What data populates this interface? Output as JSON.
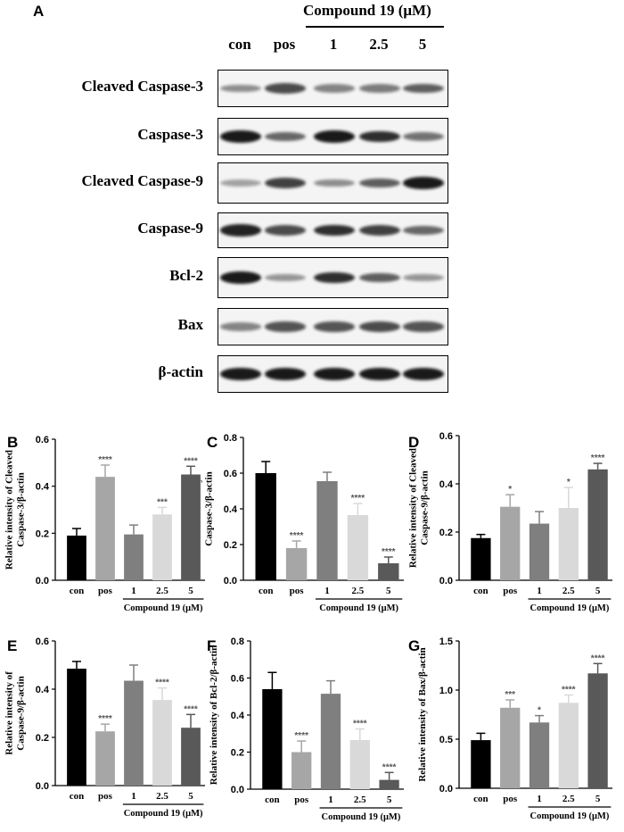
{
  "panel_a": {
    "letter": "A",
    "treatment_label": "Compound  19 (μM)",
    "lanes": [
      "con",
      "pos",
      "1",
      "2.5",
      "5"
    ],
    "rows": [
      {
        "label": "Cleaved Caspase-3",
        "intensities": [
          0.35,
          0.7,
          0.4,
          0.45,
          0.6
        ]
      },
      {
        "label": "Caspase-3",
        "intensities": [
          0.95,
          0.55,
          0.95,
          0.85,
          0.5
        ]
      },
      {
        "label": "Cleaved Caspase-9",
        "intensities": [
          0.25,
          0.75,
          0.35,
          0.6,
          0.95
        ]
      },
      {
        "label": "Caspase-9",
        "intensities": [
          0.9,
          0.7,
          0.85,
          0.75,
          0.55
        ]
      },
      {
        "label": "Bcl-2",
        "intensities": [
          0.95,
          0.3,
          0.85,
          0.6,
          0.3
        ]
      },
      {
        "label": "Bax",
        "intensities": [
          0.4,
          0.65,
          0.65,
          0.7,
          0.65
        ]
      },
      {
        "label": "β-actin",
        "intensities": [
          0.95,
          0.95,
          0.95,
          0.95,
          0.95
        ]
      }
    ]
  },
  "chart_data": [
    {
      "letter": "B",
      "type": "bar",
      "categories": [
        "con",
        "pos",
        "1",
        "2.5",
        "5"
      ],
      "values": [
        0.19,
        0.44,
        0.195,
        0.28,
        0.45
      ],
      "errors": [
        0.03,
        0.05,
        0.04,
        0.03,
        0.035
      ],
      "significance": [
        "",
        "****",
        "",
        "***",
        "****"
      ],
      "ylabel": [
        "Relative intensity of Cleaved",
        "Caspase-3/β-actin"
      ],
      "ylim": [
        0,
        0.6
      ],
      "ticks": [
        0.0,
        0.2,
        0.4,
        0.6
      ],
      "tick_labels": [
        "0.0",
        "0.2",
        "0.4",
        "0.6"
      ],
      "group_label": "Compound 19 (μM)"
    },
    {
      "letter": "C",
      "type": "bar",
      "categories": [
        "con",
        "pos",
        "1",
        "2.5",
        "5"
      ],
      "values": [
        0.6,
        0.18,
        0.555,
        0.365,
        0.095
      ],
      "errors": [
        0.065,
        0.04,
        0.05,
        0.065,
        0.035
      ],
      "significance": [
        "",
        "****",
        "",
        "****",
        "****"
      ],
      "ylabel": [
        "Relative intensity of",
        "Caspase-3/β-actin"
      ],
      "ylim": [
        0,
        0.8
      ],
      "ticks": [
        0.0,
        0.2,
        0.4,
        0.6,
        0.8
      ],
      "tick_labels": [
        "0.0",
        "0.2",
        "0.4",
        "0.6",
        "0.8"
      ],
      "group_label": "Compound 19 (μM)"
    },
    {
      "letter": "D",
      "type": "bar",
      "categories": [
        "con",
        "pos",
        "1",
        "2.5",
        "5"
      ],
      "values": [
        0.175,
        0.305,
        0.235,
        0.3,
        0.46
      ],
      "errors": [
        0.015,
        0.05,
        0.05,
        0.085,
        0.025
      ],
      "significance": [
        "",
        "*",
        "",
        "*",
        "****"
      ],
      "ylabel": [
        "Relative intensity of Cleaved",
        "Caspase-9/β-actin"
      ],
      "ylim": [
        0,
        0.6
      ],
      "ticks": [
        0.0,
        0.2,
        0.4,
        0.6
      ],
      "tick_labels": [
        "0.0",
        "0.2",
        "0.4",
        "0.6"
      ],
      "group_label": "Compound 19 (μM)"
    },
    {
      "letter": "E",
      "type": "bar",
      "categories": [
        "con",
        "pos",
        "1",
        "2.5",
        "5"
      ],
      "values": [
        0.485,
        0.225,
        0.435,
        0.355,
        0.24
      ],
      "errors": [
        0.03,
        0.03,
        0.065,
        0.05,
        0.055
      ],
      "significance": [
        "",
        "****",
        "",
        "****",
        "****"
      ],
      "ylabel": [
        "Relative intensity of",
        "Caspase-9/β-actin"
      ],
      "ylim": [
        0,
        0.6
      ],
      "ticks": [
        0.0,
        0.2,
        0.4,
        0.6
      ],
      "tick_labels": [
        "0.0",
        "0.2",
        "0.4",
        "0.6"
      ],
      "group_label": "Compound 19 (μM)"
    },
    {
      "letter": "F",
      "type": "bar",
      "categories": [
        "con",
        "pos",
        "1",
        "2.5",
        "5"
      ],
      "values": [
        0.54,
        0.2,
        0.515,
        0.265,
        0.05
      ],
      "errors": [
        0.09,
        0.06,
        0.07,
        0.06,
        0.04
      ],
      "significance": [
        "",
        "****",
        "",
        "****",
        "****"
      ],
      "ylabel": [
        "Relative intensity of Bcl-2/β-actin"
      ],
      "ylim": [
        0,
        0.8
      ],
      "ticks": [
        0.0,
        0.2,
        0.4,
        0.6,
        0.8
      ],
      "tick_labels": [
        "0.0",
        "0.2",
        "0.4",
        "0.6",
        "0.8"
      ],
      "group_label": "Compound 19 (μM)"
    },
    {
      "letter": "G",
      "type": "bar",
      "categories": [
        "con",
        "pos",
        "1",
        "2.5",
        "5"
      ],
      "values": [
        0.49,
        0.82,
        0.67,
        0.87,
        1.17
      ],
      "errors": [
        0.07,
        0.08,
        0.07,
        0.08,
        0.1
      ],
      "significance": [
        "",
        "***",
        "*",
        "****",
        "****"
      ],
      "ylabel": [
        "Relative intensity of Bax/β-actin"
      ],
      "ylim": [
        0,
        1.5
      ],
      "ticks": [
        0.0,
        0.5,
        1.0,
        1.5
      ],
      "tick_labels": [
        "0.0",
        "0.5",
        "1.0",
        "1.5"
      ],
      "group_label": "Compound 19 (μM)"
    }
  ],
  "colors": {
    "bars": [
      "#000000",
      "#a6a6a6",
      "#7f7f7f",
      "#d9d9d9",
      "#595959"
    ],
    "band": "#111111"
  }
}
